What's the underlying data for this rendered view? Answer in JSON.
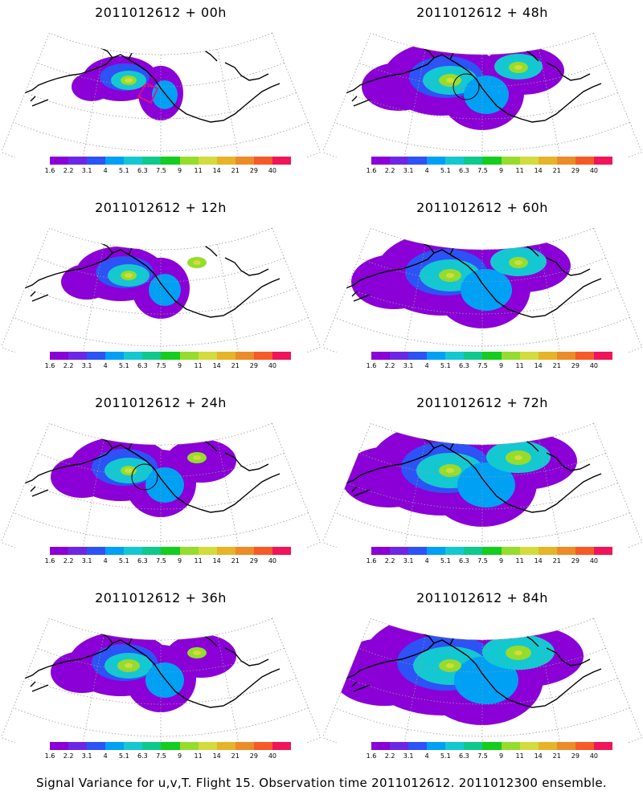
{
  "caption": "Signal Variance for u,v,T. Flight 15. Observation time 2011012612. 2011012300 ensemble.",
  "palette": {
    "colors": [
      "#8a00d6",
      "#6e26e6",
      "#2d52f5",
      "#00a0f5",
      "#14c8d2",
      "#0fc98c",
      "#14cd1e",
      "#96dc2d",
      "#d2dc3c",
      "#e6b428",
      "#eb8c28",
      "#f55a28",
      "#f0145a"
    ],
    "labels": [
      "1.6",
      "2.2",
      "3.1",
      "4",
      "5.1",
      "6.3",
      "7.5",
      "9",
      "11",
      "14",
      "21",
      "29",
      "40"
    ]
  },
  "panels": [
    {
      "title": "2011012612 + 00h",
      "extent": 1,
      "hot": 0,
      "ring": false,
      "box": true
    },
    {
      "title": "2011012612 + 48h",
      "extent": 4,
      "hot": 2,
      "ring": true,
      "box": false
    },
    {
      "title": "2011012612 + 12h",
      "extent": 2,
      "hot": 1,
      "ring": false,
      "box": false
    },
    {
      "title": "2011012612 + 60h",
      "extent": 5,
      "hot": 2,
      "ring": false,
      "box": false
    },
    {
      "title": "2011012612 + 24h",
      "extent": 3,
      "hot": 1,
      "ring": true,
      "box": false
    },
    {
      "title": "2011012612 + 72h",
      "extent": 6,
      "hot": 3,
      "ring": false,
      "box": false
    },
    {
      "title": "2011012612 + 36h",
      "extent": 3,
      "hot": 2,
      "ring": false,
      "box": false
    },
    {
      "title": "2011012612 + 84h",
      "extent": 7,
      "hot": 3,
      "ring": false,
      "box": false
    }
  ]
}
